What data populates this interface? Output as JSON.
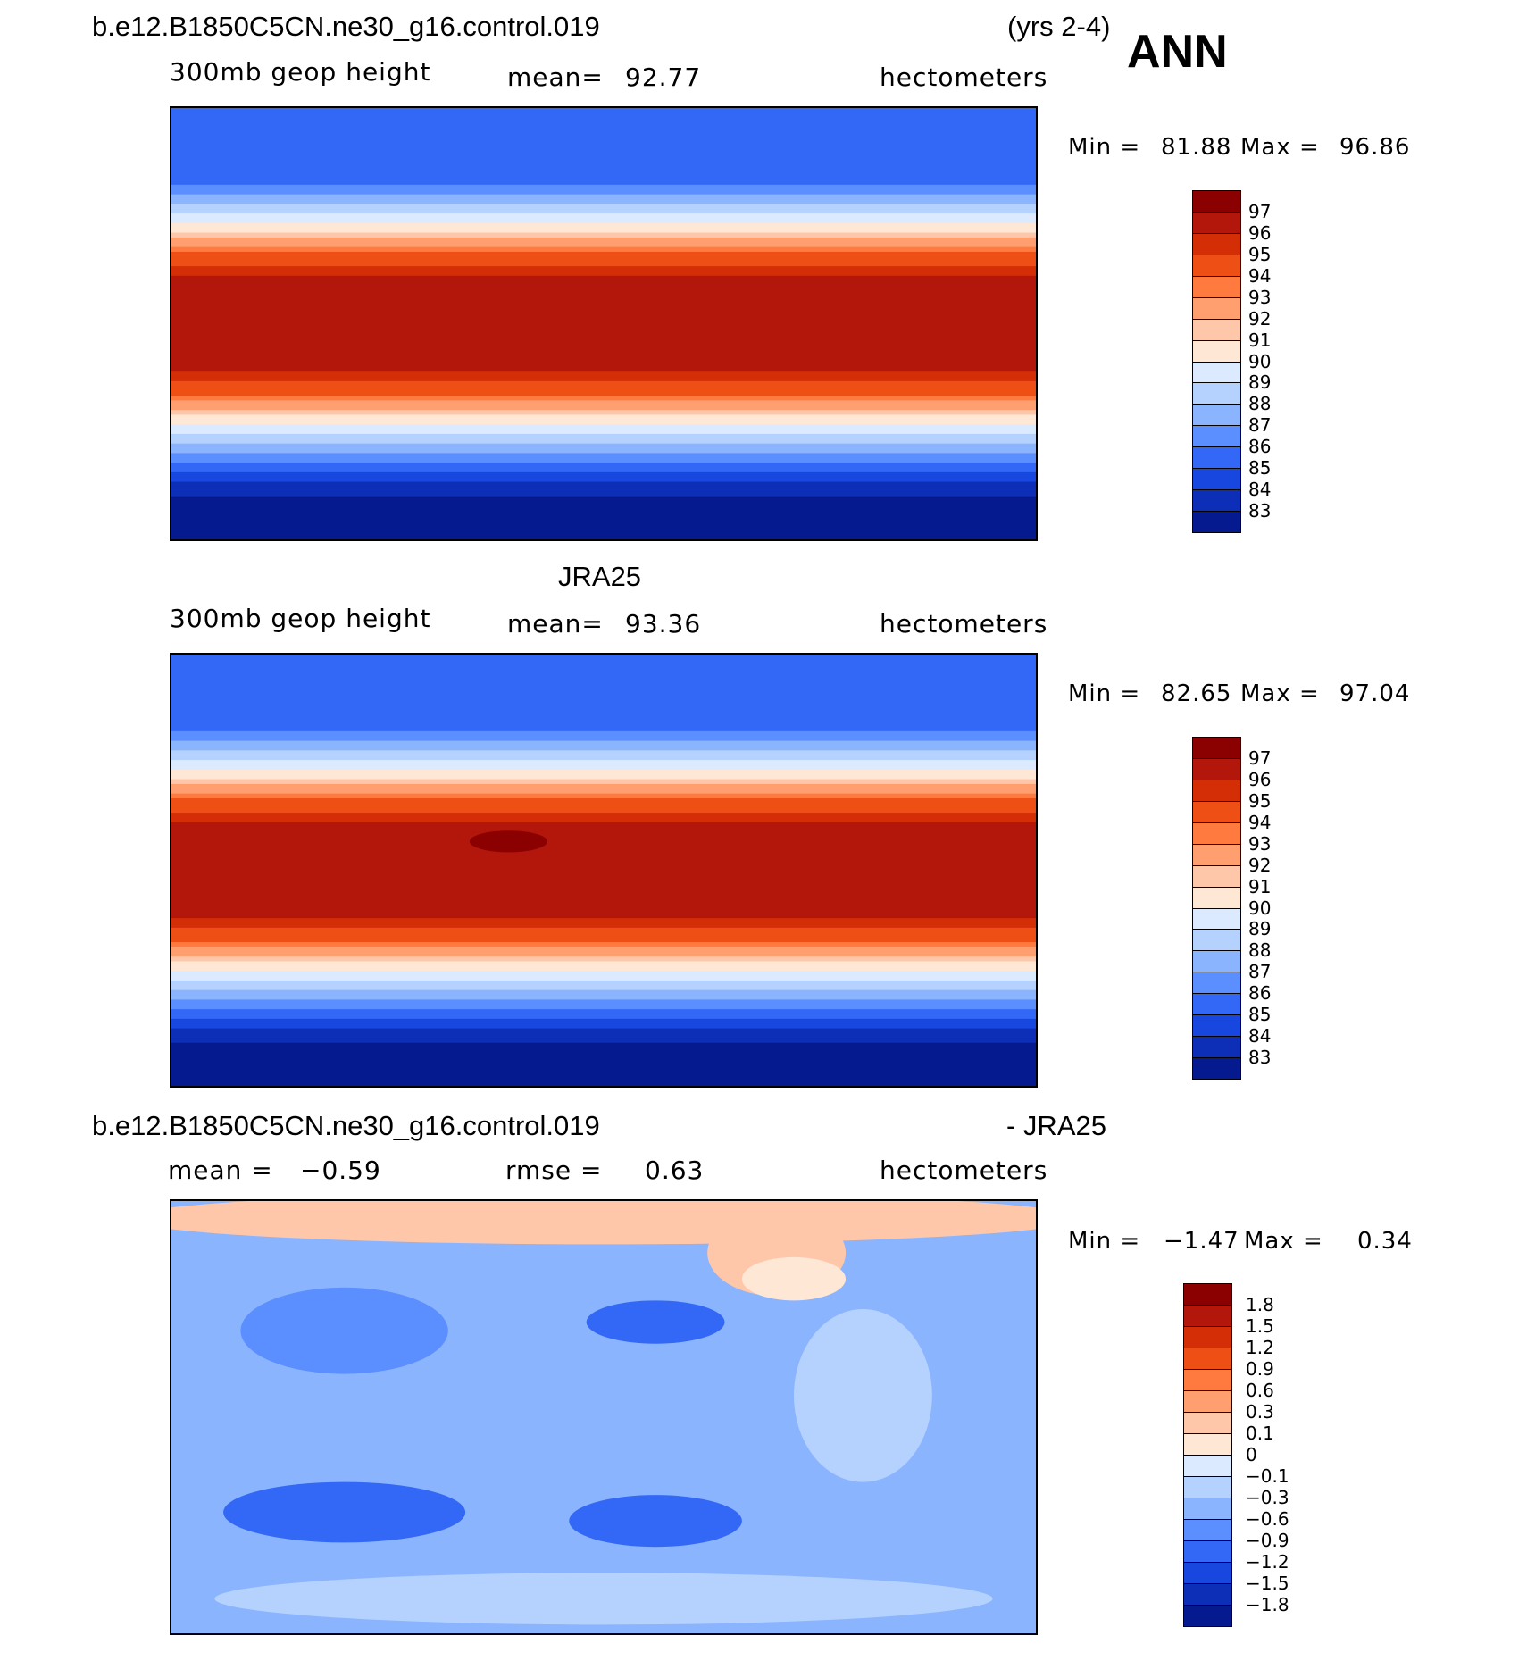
{
  "header": {
    "case_name": "b.e12.B1850C5CN.ne30_g16.control.019",
    "years": "(yrs 2-4)",
    "season": "ANN"
  },
  "panels": [
    {
      "id": "model",
      "title": "",
      "variable": "300mb geop height",
      "mean_label": "mean=",
      "mean": "92.77",
      "units": "hectometers",
      "min_label": "Min =",
      "min": "81.88",
      "max_label": "Max =",
      "max": "96.86",
      "colorbar": {
        "labels": [
          "97",
          "96",
          "95",
          "94",
          "93",
          "92",
          "91",
          "90",
          "89",
          "88",
          "87",
          "86",
          "85",
          "84",
          "83"
        ],
        "colors": [
          "#8b0000",
          "#b3160a",
          "#d42e07",
          "#ee4f15",
          "#ff7a3f",
          "#ff9f70",
          "#ffc7aa",
          "#ffe7d6",
          "#dbeaff",
          "#b5d2ff",
          "#8bb4ff",
          "#5b8eff",
          "#3368f6",
          "#1747de",
          "#0d2fb7",
          "#061a8f"
        ]
      }
    },
    {
      "id": "obs",
      "title": "JRA25",
      "variable": "300mb geop height",
      "mean_label": "mean=",
      "mean": "93.36",
      "units": "hectometers",
      "min_label": "Min =",
      "min": "82.65",
      "max_label": "Max =",
      "max": "97.04",
      "colorbar": {
        "labels": [
          "97",
          "96",
          "95",
          "94",
          "93",
          "92",
          "91",
          "90",
          "89",
          "88",
          "87",
          "86",
          "85",
          "84",
          "83"
        ],
        "colors": [
          "#8b0000",
          "#b3160a",
          "#d42e07",
          "#ee4f15",
          "#ff7a3f",
          "#ff9f70",
          "#ffc7aa",
          "#ffe7d6",
          "#dbeaff",
          "#b5d2ff",
          "#8bb4ff",
          "#5b8eff",
          "#3368f6",
          "#1747de",
          "#0d2fb7",
          "#061a8f"
        ]
      }
    },
    {
      "id": "diff",
      "title_left": "b.e12.B1850C5CN.ne30_g16.control.019",
      "title_right": "- JRA25",
      "mean_label": "mean =",
      "mean": "−0.59",
      "rmse_label": "rmse =",
      "rmse": "0.63",
      "units": "hectometers",
      "min_label": "Min =",
      "min": "−1.47",
      "max_label": "Max =",
      "max": "0.34",
      "colorbar": {
        "labels": [
          "1.8",
          "1.5",
          "1.2",
          "0.9",
          "0.6",
          "0.3",
          "0.1",
          "0",
          "−0.1",
          "−0.3",
          "−0.6",
          "−0.9",
          "−1.2",
          "−1.5",
          "−1.8"
        ],
        "colors": [
          "#8b0000",
          "#b3160a",
          "#d42e07",
          "#ee4f15",
          "#ff7a3f",
          "#ff9f70",
          "#ffc7aa",
          "#ffe7d6",
          "#dbeaff",
          "#b5d2ff",
          "#8bb4ff",
          "#5b8eff",
          "#3368f6",
          "#1747de",
          "#0d2fb7",
          "#061a8f"
        ]
      }
    }
  ]
}
